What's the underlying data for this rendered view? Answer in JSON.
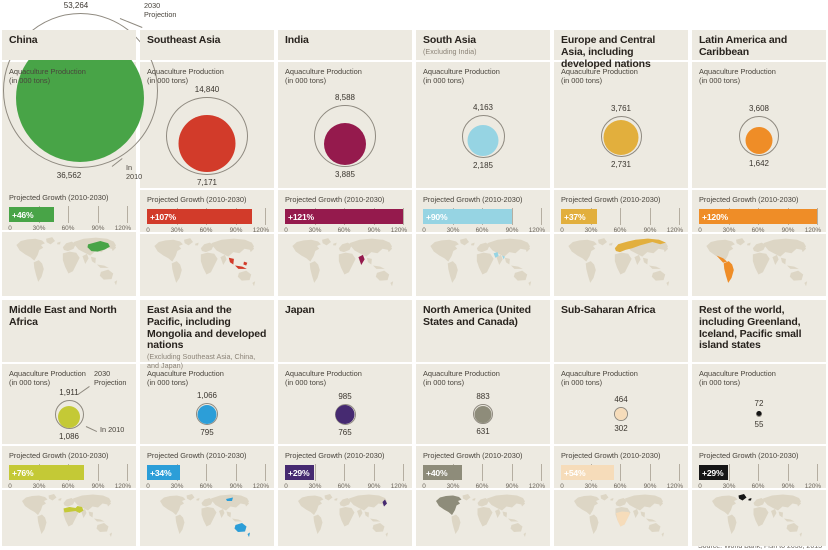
{
  "source": {
    "text": "Source: World Bank, Fish to 2030, 2013"
  },
  "shared": {
    "production_label": "Aquaculture Production\n(in 000 tons)",
    "growth_label": "Projected Growth (2010-2030)",
    "axis_ticks": [
      "0",
      "30%",
      "60%",
      "90%",
      "120%"
    ],
    "projection_annotation": "2030\nProjection",
    "in2010_annotation": "In 2010"
  },
  "panels": [
    {
      "title": "China",
      "subtitle": "",
      "value_2030_label": "53,264",
      "value_2010_label": "36,562",
      "value_2030": 53264,
      "value_2010": 36562,
      "growth_text": "+46%",
      "growth_pct": 46,
      "color": "#48a447",
      "map_region": "china",
      "annotation_style": "china"
    },
    {
      "title": "Southeast Asia",
      "subtitle": "",
      "value_2030_label": "14,840",
      "value_2010_label": "7,171",
      "value_2030": 14840,
      "value_2010": 7171,
      "growth_text": "+107%",
      "growth_pct": 107,
      "color": "#d23b2a",
      "map_region": "southeast-asia",
      "annotation_style": ""
    },
    {
      "title": "India",
      "subtitle": "",
      "value_2030_label": "8,588",
      "value_2010_label": "3,885",
      "value_2030": 8588,
      "value_2010": 3885,
      "growth_text": "+121%",
      "growth_pct": 121,
      "color": "#951a4d",
      "map_region": "india",
      "annotation_style": ""
    },
    {
      "title": "South Asia",
      "subtitle": "(Excluding India)",
      "value_2030_label": "4,163",
      "value_2010_label": "2,185",
      "value_2030": 4163,
      "value_2010": 2185,
      "growth_text": "+90%",
      "growth_pct": 90,
      "color": "#96d4e3",
      "map_region": "south-asia",
      "annotation_style": ""
    },
    {
      "title": "Europe and Central Asia, including developed nations",
      "subtitle": "",
      "value_2030_label": "3,761",
      "value_2010_label": "2,731",
      "value_2030": 3761,
      "value_2010": 2731,
      "growth_text": "+37%",
      "growth_pct": 37,
      "color": "#e2af3d",
      "map_region": "europe-central-asia",
      "annotation_style": ""
    },
    {
      "title": "Latin America and Caribbean",
      "subtitle": "",
      "value_2030_label": "3,608",
      "value_2010_label": "1,642",
      "value_2030": 3608,
      "value_2010": 1642,
      "growth_text": "+120%",
      "growth_pct": 120,
      "color": "#ef8d27",
      "map_region": "latin-america",
      "annotation_style": ""
    },
    {
      "title": "Middle East and North Africa",
      "subtitle": "",
      "value_2030_label": "1,911",
      "value_2010_label": "1,086",
      "value_2030": 1911,
      "value_2010": 1086,
      "growth_text": "+76%",
      "growth_pct": 76,
      "color": "#c4c936",
      "map_region": "middle-east-north-africa",
      "annotation_style": "mena"
    },
    {
      "title": "East Asia and the Pacific, including Mongolia and developed nations",
      "subtitle": "(Excluding Southeast Asia, China, and Japan)",
      "value_2030_label": "1,066",
      "value_2010_label": "795",
      "value_2030": 1066,
      "value_2010": 795,
      "growth_text": "+34%",
      "growth_pct": 34,
      "color": "#2c9ed8",
      "map_region": "east-asia-pacific",
      "annotation_style": ""
    },
    {
      "title": "Japan",
      "subtitle": "",
      "value_2030_label": "985",
      "value_2010_label": "765",
      "value_2030": 985,
      "value_2010": 765,
      "growth_text": "+29%",
      "growth_pct": 29,
      "color": "#462a71",
      "map_region": "japan",
      "annotation_style": ""
    },
    {
      "title": "North America (United States and Canada)",
      "subtitle": "",
      "value_2030_label": "883",
      "value_2010_label": "631",
      "value_2030": 883,
      "value_2010": 631,
      "growth_text": "+40%",
      "growth_pct": 40,
      "color": "#8e8c7a",
      "map_region": "north-america",
      "annotation_style": ""
    },
    {
      "title": "Sub-Saharan Africa",
      "subtitle": "",
      "value_2030_label": "464",
      "value_2010_label": "302",
      "value_2030": 464,
      "value_2010": 302,
      "growth_text": "+54%",
      "growth_pct": 54,
      "color": "#f6dcba",
      "map_region": "sub-saharan-africa",
      "annotation_style": ""
    },
    {
      "title": "Rest of the world, including Greenland, Iceland, Pacific small island states",
      "subtitle": "",
      "value_2030_label": "72",
      "value_2010_label": "55",
      "value_2030": 72,
      "value_2010": 55,
      "growth_text": "+29%",
      "growth_pct": 29,
      "color": "#161616",
      "map_region": "rest-of-world",
      "annotation_style": ""
    }
  ],
  "chart_data": {
    "type": "bar",
    "title": "Aquaculture Production (in 000 tons) and Projected Growth (2010-2030) by region",
    "categories": [
      "China",
      "Southeast Asia",
      "India",
      "South Asia (Excluding India)",
      "Europe and Central Asia, including developed nations",
      "Latin America and Caribbean",
      "Middle East and North Africa",
      "East Asia and the Pacific, including Mongolia and developed nations (Excluding Southeast Asia, China, and Japan)",
      "Japan",
      "North America (United States and Canada)",
      "Sub-Saharan Africa",
      "Rest of the world, including Greenland, Iceland, Pacific small island states"
    ],
    "series": [
      {
        "name": "Aquaculture production in 2010 (000 tons)",
        "values": [
          36562,
          7171,
          3885,
          2185,
          2731,
          1642,
          1086,
          795,
          765,
          631,
          302,
          55
        ]
      },
      {
        "name": "Aquaculture production 2030 projection (000 tons)",
        "values": [
          53264,
          14840,
          8588,
          4163,
          3761,
          3608,
          1911,
          1066,
          985,
          883,
          464,
          72
        ]
      },
      {
        "name": "Projected growth 2010-2030 (%)",
        "values": [
          46,
          107,
          121,
          90,
          37,
          120,
          76,
          34,
          29,
          40,
          54,
          29
        ]
      }
    ],
    "growth_axis": {
      "ticks": [
        "0",
        "30%",
        "60%",
        "90%",
        "120%"
      ],
      "range": [
        0,
        120
      ]
    },
    "legend_position": "none",
    "grid": false
  }
}
